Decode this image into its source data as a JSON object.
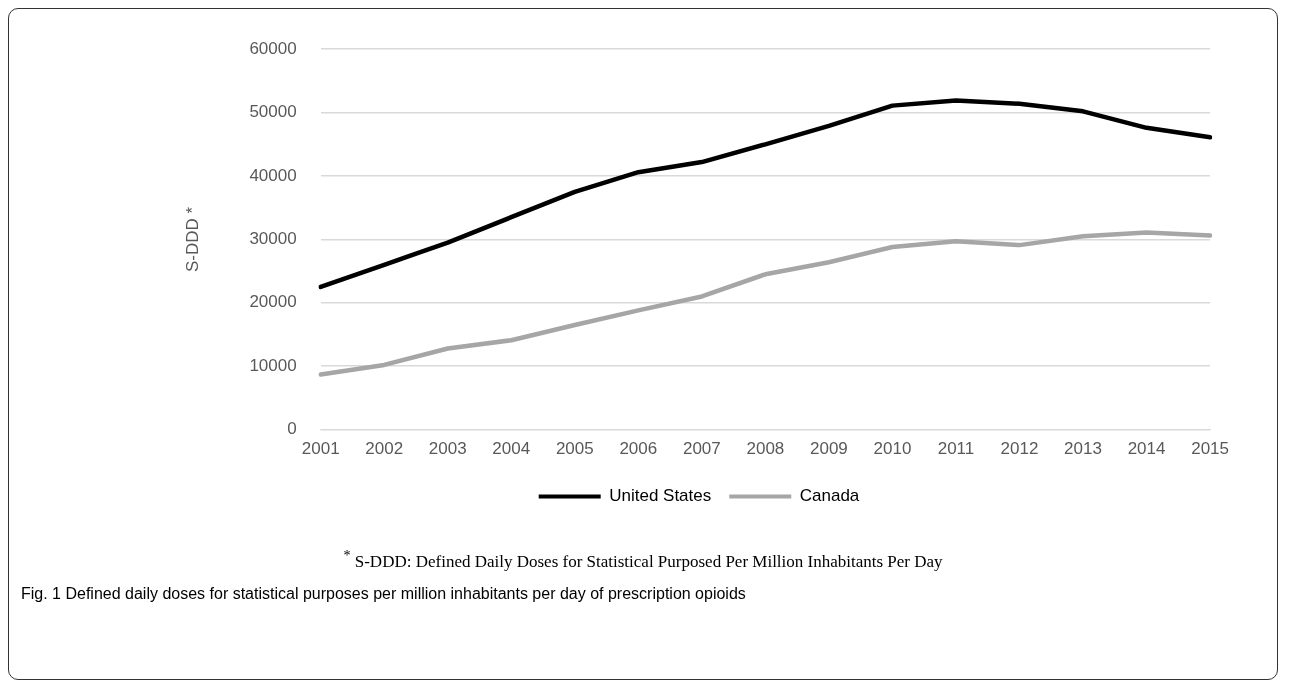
{
  "chart_data": {
    "type": "line",
    "ylabel": "S-DDD *",
    "categories": [
      "2001",
      "2002",
      "2003",
      "2004",
      "2005",
      "2006",
      "2007",
      "2008",
      "2009",
      "2010",
      "2011",
      "2012",
      "2013",
      "2014",
      "2015"
    ],
    "series": [
      {
        "name": "United States",
        "color": "#000000",
        "values": [
          22500,
          26000,
          29500,
          33500,
          37500,
          40600,
          42200,
          45000,
          47900,
          51100,
          51900,
          51400,
          50200,
          47600,
          46100
        ]
      },
      {
        "name": "Canada",
        "color": "#a6a6a6",
        "values": [
          8700,
          10200,
          12800,
          14100,
          16500,
          18800,
          21000,
          24500,
          26400,
          28800,
          29700,
          29100,
          30500,
          31100,
          30600
        ]
      }
    ],
    "ylim": [
      0,
      60000
    ],
    "yticks": [
      0,
      10000,
      20000,
      30000,
      40000,
      50000,
      60000
    ],
    "grid": "y",
    "legend": "bottom",
    "marker": "none",
    "line_style": "solid",
    "annotations": [
      "$^{*}$ S-DDD: Defined Daily Doses for Statistical Purposed Per Million Inhabitants Per Day",
      "Fig. 1 Defined daily doses for statistical purposes per million inhabitants per day of prescription opioids"
    ]
  }
}
